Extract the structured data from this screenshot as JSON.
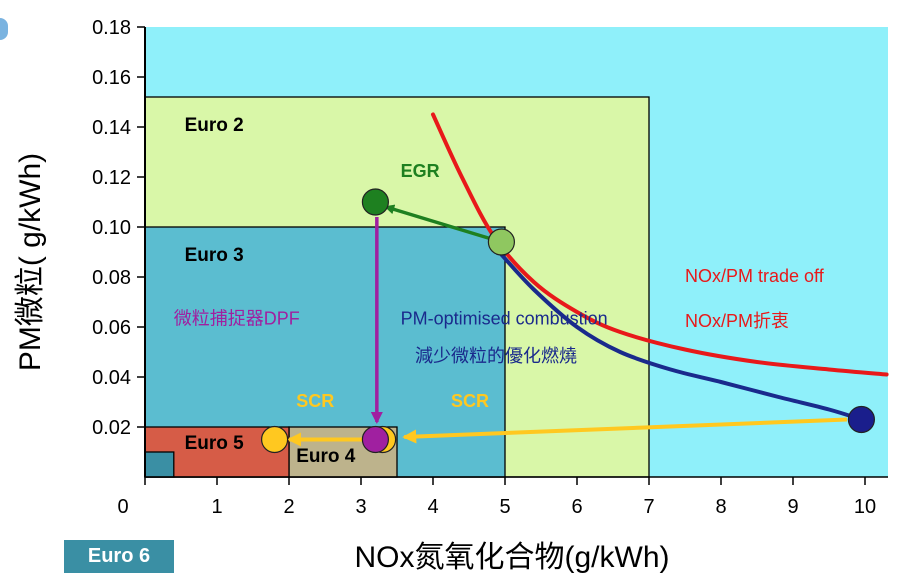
{
  "chart_data": {
    "type": "scatter",
    "title": "",
    "xlabel": "NOx氮氧化合物(g/kWh)",
    "ylabel": "PM微粒( g/kWh)",
    "xlim": [
      0,
      10.6
    ],
    "ylim": [
      0,
      0.18
    ],
    "x_ticks": [
      "0",
      "1",
      "2",
      "3",
      "4",
      "5",
      "6",
      "7",
      "8",
      "9",
      "10"
    ],
    "y_ticks": [
      "0.02",
      "0.04",
      "0.06",
      "0.08",
      "0.10",
      "0.12",
      "0.14",
      "0.16",
      "0.18"
    ],
    "grid": false,
    "regions": [
      {
        "name": "Euro 2",
        "x": [
          0,
          7
        ],
        "y": [
          0,
          0.152
        ],
        "color": "#d9f7a8"
      },
      {
        "name": "Euro 3",
        "x": [
          0,
          5
        ],
        "y": [
          0,
          0.1
        ],
        "color": "#5bbdd0"
      },
      {
        "name": "Euro 4",
        "x": [
          2,
          3.5
        ],
        "y": [
          0,
          0.02
        ],
        "color": "#bdb38c"
      },
      {
        "name": "Euro 5",
        "x": [
          0,
          2
        ],
        "y": [
          0,
          0.02
        ],
        "color": "#d65c47"
      },
      {
        "name": "Euro 6",
        "x": [
          0,
          0.4
        ],
        "y": [
          0,
          0.01
        ],
        "color": "#3a8fa4"
      }
    ],
    "series": [
      {
        "name": "NOx/PM trade off",
        "color": "#e8191a",
        "points": [
          [
            4,
            0.145
          ],
          [
            4.4,
            0.12
          ],
          [
            4.85,
            0.096
          ],
          [
            5.4,
            0.078
          ],
          [
            6,
            0.066
          ],
          [
            6.6,
            0.058
          ],
          [
            7.5,
            0.051
          ],
          [
            8.5,
            0.046
          ],
          [
            9.5,
            0.043
          ],
          [
            10.3,
            0.041
          ]
        ]
      },
      {
        "name": "PM-optimised combustion",
        "color": "#1a2a8c",
        "points": [
          [
            4.95,
            0.089
          ],
          [
            5.4,
            0.075
          ],
          [
            6,
            0.06
          ],
          [
            6.6,
            0.05
          ],
          [
            7.3,
            0.043
          ],
          [
            8,
            0.038
          ],
          [
            8.8,
            0.032
          ],
          [
            9.5,
            0.027
          ],
          [
            9.95,
            0.023
          ]
        ]
      }
    ],
    "markers": [
      {
        "x": 3.2,
        "y": 0.11,
        "color": "#1e8020"
      },
      {
        "x": 4.95,
        "y": 0.094,
        "color": "#8fc760"
      },
      {
        "x": 9.95,
        "y": 0.023,
        "color": "#1a1e8c"
      },
      {
        "x": 3.3,
        "y": 0.015,
        "color": "#ffc820"
      },
      {
        "x": 1.8,
        "y": 0.015,
        "color": "#ffc820"
      },
      {
        "x": 3.2,
        "y": 0.015,
        "color": "#a020a0"
      }
    ],
    "arrows": [
      {
        "from": [
          4.95,
          0.094
        ],
        "to": [
          3.35,
          0.108
        ],
        "color": "#1e8020"
      },
      {
        "from": [
          3.22,
          0.104
        ],
        "to": [
          3.22,
          0.022
        ],
        "color": "#a020a0"
      },
      {
        "from": [
          9.75,
          0.023
        ],
        "to": [
          3.6,
          0.016
        ],
        "color": "#ffc820"
      },
      {
        "from": [
          3.05,
          0.015
        ],
        "to": [
          2.0,
          0.015
        ],
        "color": "#ffc820"
      }
    ],
    "annotations": [
      {
        "text": "EGR",
        "x": 3.55,
        "y": 0.12,
        "color": "#1e8020"
      },
      {
        "text": "微粒捕捉器DPF",
        "x": 0.4,
        "y": 0.061,
        "color": "#a020a0"
      },
      {
        "text": "PM-optimised combustion",
        "x": 3.55,
        "y": 0.061,
        "color": "#1a2a8c"
      },
      {
        "text": "減少微粒的優化燃燒",
        "x": 3.75,
        "y": 0.046,
        "color": "#1a2a8c"
      },
      {
        "text": "NOx/PM trade off",
        "x": 7.5,
        "y": 0.078,
        "color": "#e8191a"
      },
      {
        "text": "NOx/PM折衷",
        "x": 7.5,
        "y": 0.06,
        "color": "#e8191a"
      },
      {
        "text": "SCR",
        "x": 2.1,
        "y": 0.028,
        "color": "#ffc820"
      },
      {
        "text": "SCR",
        "x": 4.25,
        "y": 0.028,
        "color": "#ffc820"
      }
    ],
    "legend": "none"
  },
  "euro6_label": "Euro 6"
}
